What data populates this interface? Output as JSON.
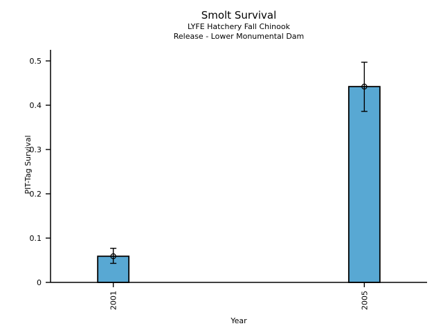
{
  "chart_data": {
    "type": "bar",
    "title": "Smolt Survival",
    "subtitle1": "LYFE Hatchery Fall Chinook",
    "subtitle2": "Release - Lower Monumental Dam",
    "xlabel": "Year",
    "ylabel": "PIT-Tag Survival",
    "categories": [
      "2001",
      "2005"
    ],
    "series": [
      {
        "category": "2001",
        "value": 0.059,
        "err_low": 0.043,
        "err_high": 0.077
      },
      {
        "category": "2005",
        "value": 0.442,
        "err_low": 0.386,
        "err_high": 0.497
      }
    ],
    "yticks": {
      "values": [
        0,
        0.1,
        0.2,
        0.3,
        0.4,
        0.5
      ],
      "labels": [
        "0",
        "0.1",
        "0.2",
        "0.3",
        "0.4",
        "0.5"
      ]
    },
    "ylim": [
      0,
      0.525
    ],
    "x_axis_range_years": [
      2000,
      2006
    ],
    "grid": false,
    "legend": "none",
    "marker": "open-circle",
    "error_bars": true,
    "colors": {
      "bar_fill": "#58A8D3",
      "bar_edge": "#000000",
      "axis": "#000000",
      "text": "#000000",
      "background": "#FFFFFF"
    }
  }
}
